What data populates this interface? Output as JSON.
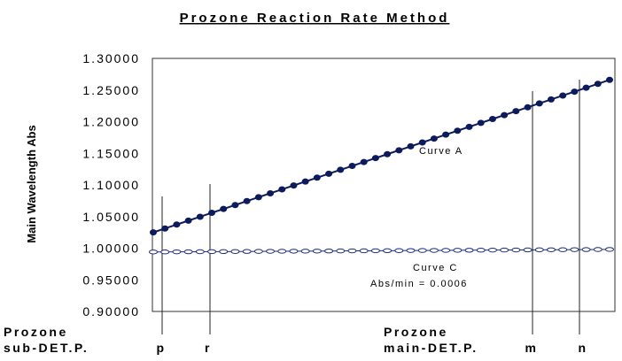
{
  "chart_data": {
    "type": "line",
    "title": "Prozone Reaction Rate Method",
    "ylabel": "Main Wavelength Abs",
    "ylim": [
      0.9,
      1.3
    ],
    "y_ticks": [
      "1.30000",
      "1.25000",
      "1.20000",
      "1.15000",
      "1.10000",
      "1.05000",
      "1.00000",
      "0.95000",
      "0.90000"
    ],
    "grid": false,
    "series": [
      {
        "name": "Curve A",
        "color": "#0d1a5c",
        "start": 1.025,
        "end": 1.266,
        "points": 40
      },
      {
        "name": "Curve C",
        "color": "#1a2a78",
        "start": 0.994,
        "end": 0.998,
        "points": 40
      }
    ],
    "annotations": {
      "curve_a": "Curve A",
      "curve_c": "Curve C",
      "curve_c_rate": "Abs/min = 0.0006"
    },
    "markers": {
      "p": "p",
      "r": "r",
      "m": "m",
      "n": "n"
    },
    "bottom_labels": {
      "sub_line1": "Prozone",
      "sub_line2": "sub-DET.P.",
      "main_line1": "Prozone",
      "main_line2": "main-DET.P."
    }
  }
}
